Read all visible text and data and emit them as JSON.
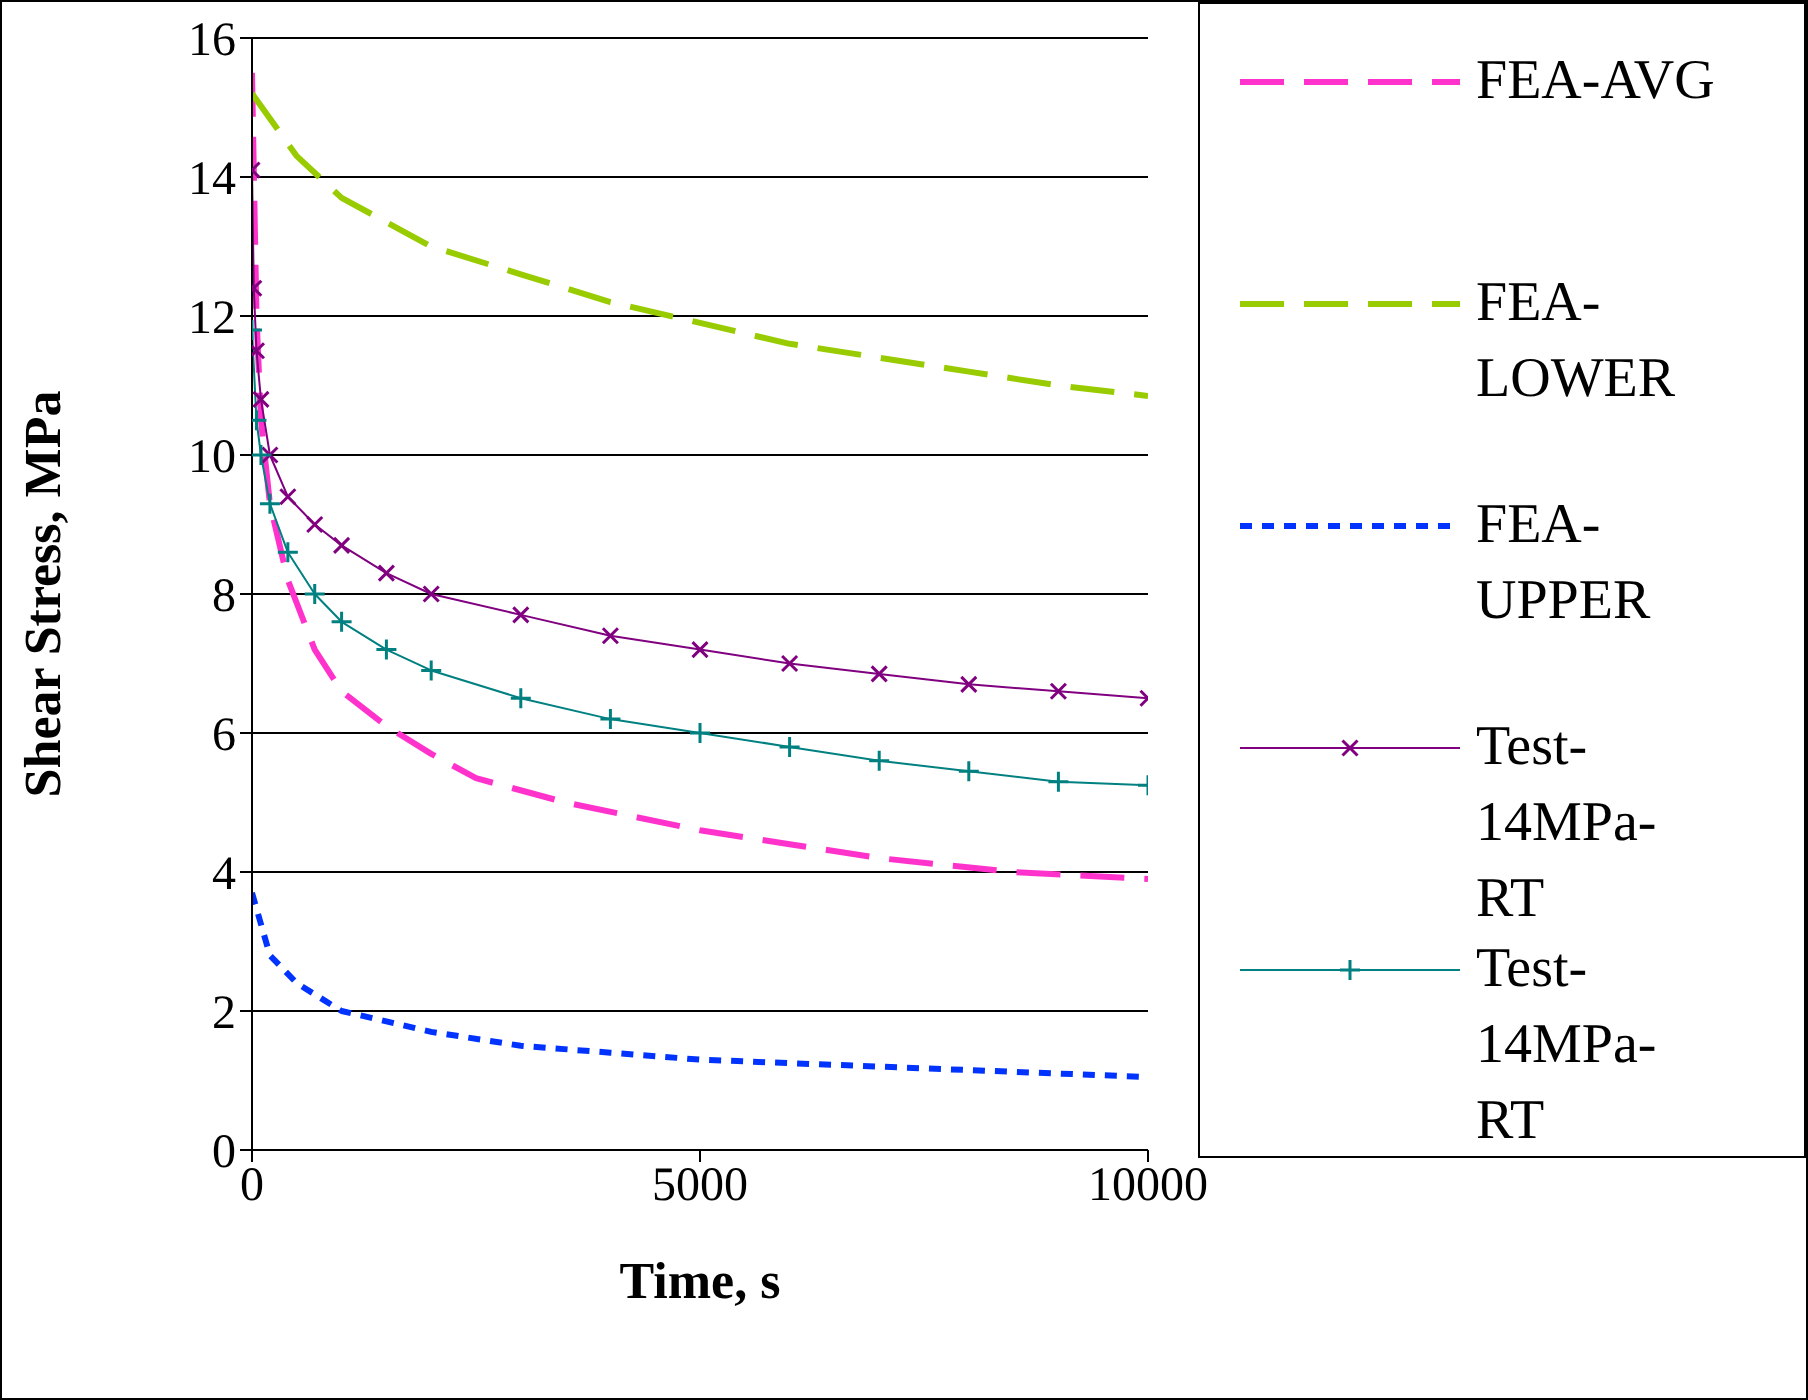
{
  "chart_data": {
    "type": "line",
    "xlabel": "Time, s",
    "ylabel": "Shear Stress, MPa",
    "xlim": [
      0,
      10000
    ],
    "xticks": [
      0,
      5000,
      10000
    ],
    "ylim": [
      0,
      16
    ],
    "yticks": [
      0,
      2,
      4,
      6,
      8,
      10,
      12,
      14,
      16
    ],
    "grid": "y",
    "legend": "right",
    "series": [
      {
        "name": "FEA-AVG",
        "color": "#ff33cc",
        "line_style": "dashed",
        "marker": "none",
        "x": [
          0,
          50,
          100,
          200,
          400,
          700,
          1000,
          1500,
          2000,
          2500,
          3500,
          5000,
          6000,
          7000,
          8500,
          10000
        ],
        "values": [
          15.5,
          12,
          10.5,
          9.3,
          8.2,
          7.2,
          6.6,
          6.1,
          5.7,
          5.35,
          5.0,
          4.6,
          4.4,
          4.2,
          4.0,
          3.9
        ]
      },
      {
        "name": "FEA-LOWER",
        "color": "#99cc00",
        "line_style": "dashed",
        "marker": "none",
        "x": [
          0,
          500,
          1000,
          2000,
          3000,
          4000,
          5000,
          6000,
          7000,
          8000,
          9000,
          10000
        ],
        "values": [
          15.2,
          14.3,
          13.7,
          13.0,
          12.6,
          12.2,
          11.9,
          11.6,
          11.4,
          11.2,
          11.0,
          10.85
        ]
      },
      {
        "name": "FEA-UPPER",
        "color": "#0033ff",
        "line_style": "dotted",
        "marker": "none",
        "x": [
          0,
          200,
          500,
          1000,
          2000,
          3000,
          4000,
          5000,
          6000,
          7000,
          8000,
          9000,
          10000
        ],
        "values": [
          3.7,
          2.8,
          2.4,
          2.0,
          1.7,
          1.5,
          1.4,
          1.3,
          1.25,
          1.2,
          1.15,
          1.1,
          1.05
        ]
      },
      {
        "name": "Test-14MPa-RT",
        "color": "#800080",
        "line_style": "solid",
        "marker": "cross",
        "x": [
          0,
          20,
          50,
          100,
          200,
          400,
          700,
          1000,
          1500,
          2000,
          3000,
          4000,
          5000,
          6000,
          7000,
          8000,
          9000,
          10000
        ],
        "values": [
          14.1,
          12.4,
          11.5,
          10.8,
          10.0,
          9.4,
          9.0,
          8.7,
          8.3,
          8.0,
          7.7,
          7.4,
          7.2,
          7.0,
          6.85,
          6.7,
          6.6,
          6.5
        ]
      },
      {
        "name": "Test-14MPa-RT",
        "color": "#008080",
        "line_style": "solid",
        "marker": "cross",
        "x": [
          0,
          50,
          100,
          200,
          400,
          700,
          1000,
          1500,
          2000,
          3000,
          4000,
          5000,
          6000,
          7000,
          8000,
          9000,
          10000
        ],
        "values": [
          11.8,
          10.5,
          10.0,
          9.3,
          8.6,
          8.0,
          7.6,
          7.2,
          6.9,
          6.5,
          6.2,
          6.0,
          5.8,
          5.6,
          5.45,
          5.3,
          5.25
        ]
      }
    ]
  }
}
